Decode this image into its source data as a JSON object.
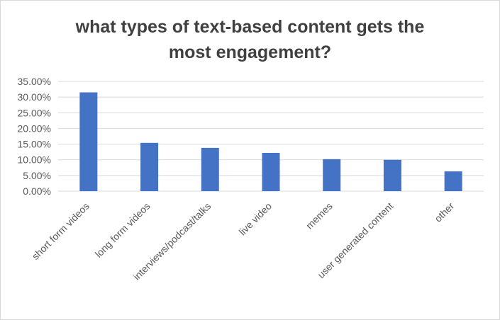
{
  "chart_data": {
    "type": "bar",
    "title": "what types of text-based content gets the most engagement?",
    "xlabel": "",
    "ylabel": "",
    "categories": [
      "short form videos",
      "long form videos",
      "interviews/podcast/talks",
      "live video",
      "memes",
      "user generated content",
      "other"
    ],
    "values": [
      0.315,
      0.154,
      0.138,
      0.122,
      0.102,
      0.1,
      0.063
    ],
    "ylim": [
      0,
      0.35
    ],
    "yticks": [
      "0.00%",
      "5.00%",
      "10.00%",
      "15.00%",
      "20.00%",
      "25.00%",
      "30.00%",
      "35.00%"
    ],
    "grid": true,
    "legend": "none",
    "colors": {
      "bar": "#4472C4",
      "grid": "#d9d9d9",
      "text": "#595959",
      "title": "#404040"
    }
  }
}
